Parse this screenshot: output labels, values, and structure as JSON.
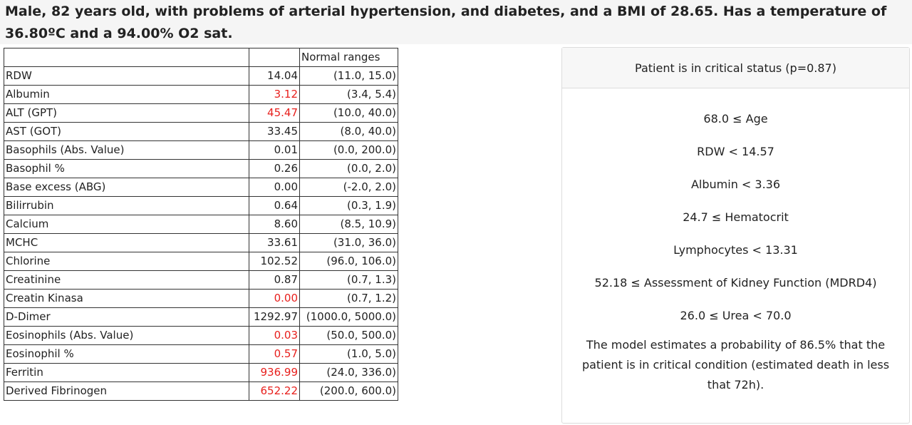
{
  "summary": "Male, 82 years old, with problems of arterial hypertension, and diabetes, and a BMI of 28.65. Has a temperature of 36.80ºC and a 94.00% O2 sat.",
  "table": {
    "headers": [
      "",
      "",
      "Normal ranges"
    ],
    "rows": [
      {
        "name": "RDW",
        "value": "14.04",
        "range": "(11.0, 15.0)",
        "abnormal": false
      },
      {
        "name": "Albumin",
        "value": "3.12",
        "range": "(3.4, 5.4)",
        "abnormal": true
      },
      {
        "name": "ALT (GPT)",
        "value": "45.47",
        "range": "(10.0, 40.0)",
        "abnormal": true
      },
      {
        "name": "AST (GOT)",
        "value": "33.45",
        "range": "(8.0, 40.0)",
        "abnormal": false
      },
      {
        "name": "Basophils (Abs. Value)",
        "value": "0.01",
        "range": "(0.0, 200.0)",
        "abnormal": false
      },
      {
        "name": "Basophil %",
        "value": "0.26",
        "range": "(0.0, 2.0)",
        "abnormal": false
      },
      {
        "name": "Base excess (ABG)",
        "value": "0.00",
        "range": "(-2.0, 2.0)",
        "abnormal": false
      },
      {
        "name": "Bilirrubin",
        "value": "0.64",
        "range": "(0.3, 1.9)",
        "abnormal": false
      },
      {
        "name": "Calcium",
        "value": "8.60",
        "range": "(8.5, 10.9)",
        "abnormal": false
      },
      {
        "name": "MCHC",
        "value": "33.61",
        "range": "(31.0, 36.0)",
        "abnormal": false
      },
      {
        "name": "Chlorine",
        "value": "102.52",
        "range": "(96.0, 106.0)",
        "abnormal": false
      },
      {
        "name": "Creatinine",
        "value": "0.87",
        "range": "(0.7, 1.3)",
        "abnormal": false
      },
      {
        "name": "Creatin Kinasa",
        "value": "0.00",
        "range": "(0.7, 1.2)",
        "abnormal": true
      },
      {
        "name": "D-Dimer",
        "value": "1292.97",
        "range": "(1000.0, 5000.0)",
        "abnormal": false
      },
      {
        "name": "Eosinophils (Abs. Value)",
        "value": "0.03",
        "range": "(50.0, 500.0)",
        "abnormal": true
      },
      {
        "name": "Eosinophil %",
        "value": "0.57",
        "range": "(1.0, 5.0)",
        "abnormal": true
      },
      {
        "name": "Ferritin",
        "value": "936.99",
        "range": "(24.0, 336.0)",
        "abnormal": true
      },
      {
        "name": "Derived Fibrinogen",
        "value": "652.22",
        "range": "(200.0, 600.0)",
        "abnormal": true
      }
    ]
  },
  "panel": {
    "title": "Patient is in critical status (p=0.87)",
    "rules": [
      "68.0 ≤ Age",
      "RDW < 14.57",
      "Albumin < 3.36",
      "24.7 ≤ Hematocrit",
      "Lymphocytes < 13.31",
      "52.18 ≤ Assessment of Kidney Function (MDRD4)",
      "26.0 ≤ Urea < 70.0"
    ],
    "conclusion": "The model estimates a probability of 86.5% that the patient is in critical condition (estimated death in less that 72h)."
  },
  "colors": {
    "abnormal": "#e8201d",
    "header_bg": "#f5f5f5",
    "panel_border": "#dcdcdc"
  }
}
